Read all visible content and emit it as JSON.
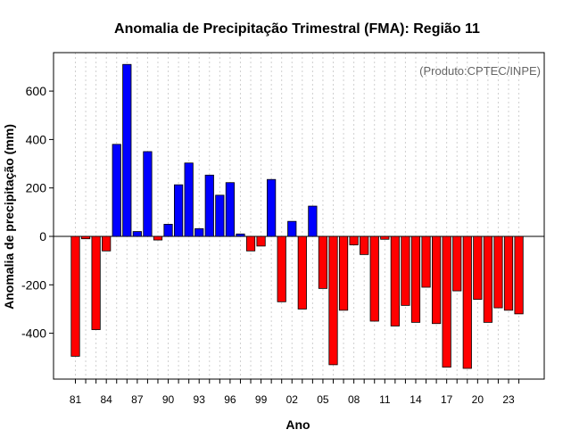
{
  "chart_data": {
    "type": "bar",
    "title": "Anomalia de Precipitação Trimestral (FMA): Região 11",
    "xlabel": "Ano",
    "ylabel": "Anomalia de precipitação (mm)",
    "annotation": "(Produto:CPTEC/INPE)",
    "ylim": [
      -600,
      750
    ],
    "yticks": [
      -400,
      -200,
      0,
      200,
      400,
      600
    ],
    "grid": true,
    "categories": [
      "81",
      "82",
      "83",
      "84",
      "85",
      "86",
      "87",
      "88",
      "89",
      "90",
      "91",
      "92",
      "93",
      "94",
      "95",
      "96",
      "97",
      "98",
      "99",
      "00",
      "01",
      "02",
      "03",
      "04",
      "05",
      "06",
      "07",
      "08",
      "09",
      "10",
      "11",
      "12",
      "13",
      "14",
      "15",
      "16",
      "17",
      "18",
      "19",
      "20",
      "21",
      "22",
      "23",
      "24"
    ],
    "x_tick_labels": [
      "81",
      "84",
      "87",
      "90",
      "93",
      "96",
      "99",
      "02",
      "05",
      "08",
      "11",
      "14",
      "17",
      "20",
      "23"
    ],
    "values": [
      -495,
      -10,
      -385,
      -60,
      380,
      710,
      20,
      350,
      -15,
      50,
      213,
      303,
      32,
      253,
      170,
      222,
      10,
      -60,
      -40,
      235,
      -270,
      62,
      -300,
      125,
      -215,
      -530,
      -305,
      -35,
      -75,
      -350,
      -12,
      -370,
      -285,
      -355,
      -210,
      -360,
      -540,
      -225,
      -545,
      -260,
      -355,
      -295,
      -305,
      -320
    ],
    "colors": {
      "positive": "#0000ff",
      "negative": "#ff0000"
    }
  }
}
